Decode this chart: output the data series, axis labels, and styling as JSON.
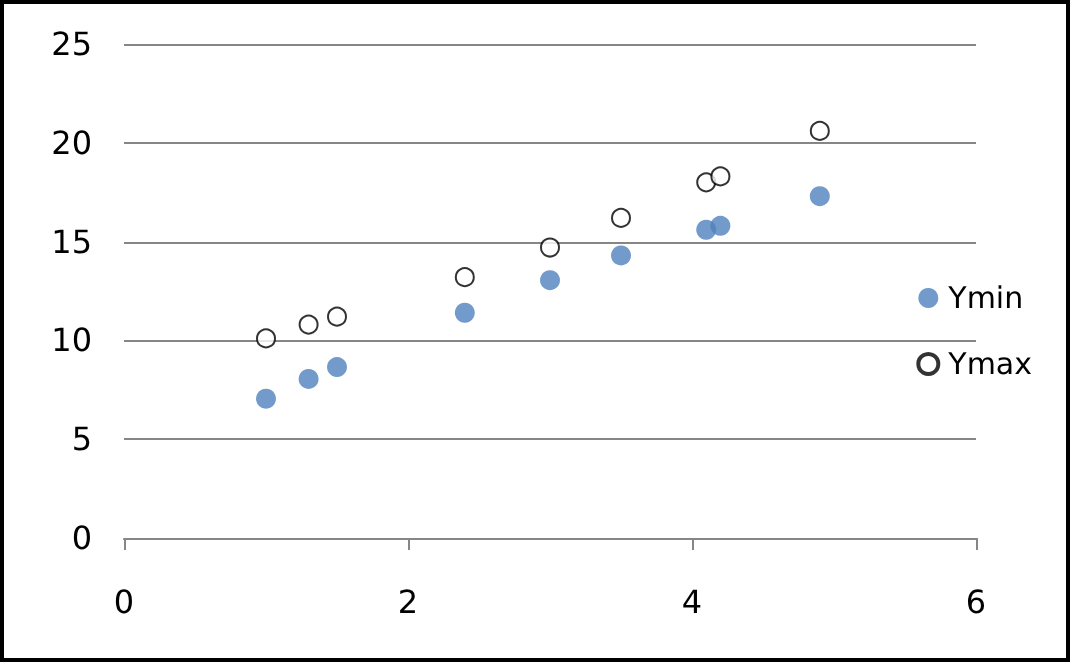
{
  "chart_data": {
    "type": "scatter",
    "x": [
      1.0,
      1.3,
      1.5,
      2.4,
      3.0,
      3.5,
      4.1,
      4.2,
      4.9
    ],
    "series": [
      {
        "name": "Ymin",
        "color": "#4f81bd",
        "values": [
          7.05,
          8.05,
          8.65,
          11.4,
          13.05,
          14.3,
          15.6,
          15.8,
          17.3
        ]
      },
      {
        "name": "Ymax",
        "color": "#000000",
        "values": [
          10.1,
          10.8,
          11.2,
          13.2,
          14.7,
          16.2,
          18.0,
          18.3,
          20.6
        ]
      }
    ],
    "xlim": [
      0,
      6
    ],
    "xticks": [
      0,
      2,
      4,
      6
    ],
    "ylim": [
      0,
      25
    ],
    "yticks": [
      0,
      5,
      10,
      15,
      20,
      25
    ],
    "grid": "y",
    "legend": "right",
    "marker": "circle"
  }
}
